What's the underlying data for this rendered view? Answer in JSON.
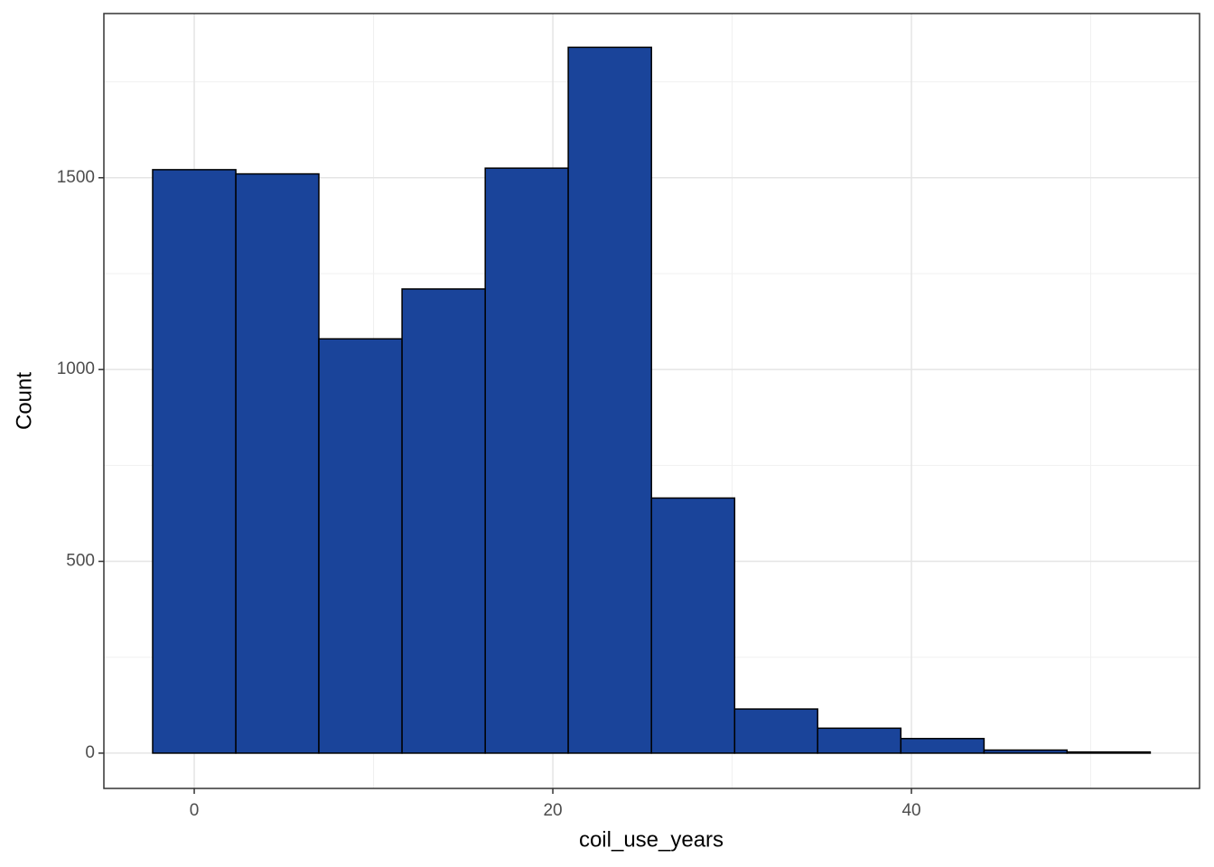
{
  "chart_data": {
    "type": "histogram",
    "x_label": "coil_use_years",
    "y_label": "Count",
    "bins": [
      -2.32,
      2.32,
      6.95,
      11.59,
      16.23,
      20.86,
      25.5,
      30.14,
      34.77,
      39.41,
      44.05,
      48.68,
      53.32
    ],
    "values": [
      1521,
      1510,
      1080,
      1210,
      1525,
      1840,
      665,
      115,
      65,
      38,
      8,
      3
    ],
    "color": "#1a449a",
    "edge_color": "#000000",
    "xlim": [
      -5.04,
      56.07
    ],
    "ylim": [
      -92,
      1928
    ],
    "xticks": [
      0,
      20,
      40
    ],
    "yticks": [
      0,
      500,
      1000,
      1500
    ],
    "xminor": [
      10,
      30,
      50
    ],
    "yminor": [
      250,
      750,
      1250,
      1750
    ],
    "grid": true
  }
}
